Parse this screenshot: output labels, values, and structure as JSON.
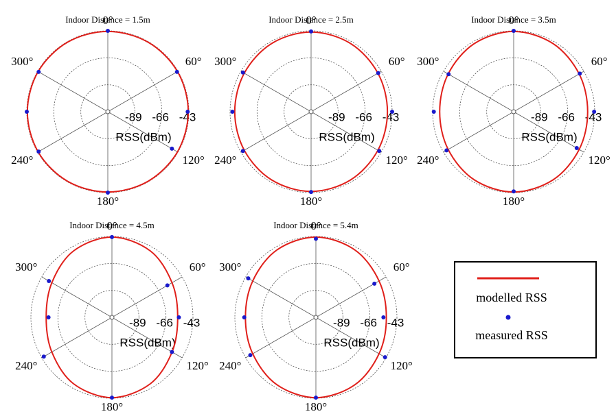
{
  "chart_data": [
    {
      "type": "polar",
      "title": "Indoor Distance = 1.5m",
      "ylabel": "RSS(dBm)",
      "ylim": [
        -112,
        -43
      ],
      "yticks": [
        -89,
        -66,
        -43
      ],
      "xticks": [
        {
          "value": 0,
          "label": "0°"
        },
        {
          "value": 60,
          "label": "60°"
        },
        {
          "value": 120,
          "label": "120°"
        },
        {
          "value": 180,
          "label": "180°"
        },
        {
          "value": 240,
          "label": "240°"
        },
        {
          "value": 300,
          "label": "300°"
        }
      ],
      "series": [
        {
          "name": "modelled RSS",
          "color": "#e0201b",
          "style": "line",
          "x": [
            0,
            30,
            60,
            90,
            120,
            150,
            180,
            210,
            240,
            270,
            300,
            330
          ],
          "values": [
            -43.5,
            -43.5,
            -43.5,
            -43.5,
            -43.5,
            -43.5,
            -43.5,
            -43.5,
            -43.5,
            -43.5,
            -43.5,
            -43.5
          ]
        },
        {
          "name": "measured RSS",
          "color": "#1a1acc",
          "style": "marker",
          "x": [
            0,
            60,
            90,
            120,
            180,
            240,
            270,
            300
          ],
          "values": [
            -43,
            -44,
            -44,
            -49,
            -43,
            -44,
            -43,
            -44
          ]
        }
      ]
    },
    {
      "type": "polar",
      "title": "Indoor Distance = 2.5m",
      "ylabel": "RSS(dBm)",
      "ylim": [
        -112,
        -43
      ],
      "yticks": [
        -89,
        -66,
        -43
      ],
      "xticks": [
        {
          "value": 0,
          "label": "0°"
        },
        {
          "value": 60,
          "label": "60°"
        },
        {
          "value": 120,
          "label": "120°"
        },
        {
          "value": 180,
          "label": "180°"
        },
        {
          "value": 240,
          "label": "240°"
        },
        {
          "value": 300,
          "label": "300°"
        }
      ],
      "series": [
        {
          "color": "#e0201b",
          "style": "line",
          "x": [
            0,
            30,
            60,
            90,
            120,
            150,
            180,
            210,
            240,
            270,
            300,
            330
          ],
          "values": [
            -44,
            -44.8,
            -46.3,
            -47,
            -46.3,
            -44.8,
            -44,
            -44.8,
            -46.3,
            -47,
            -46.3,
            -44.8
          ]
        },
        {
          "color": "#1a1acc",
          "style": "marker",
          "x": [
            0,
            60,
            90,
            120,
            180,
            240,
            270,
            300
          ],
          "values": [
            -43.5,
            -46,
            -43,
            -45,
            -43.5,
            -45,
            -45,
            -45
          ]
        }
      ]
    },
    {
      "type": "polar",
      "title": "Indoor Distance = 3.5m",
      "ylabel": "RSS(dBm)",
      "ylim": [
        -112,
        -43
      ],
      "yticks": [
        -89,
        -66,
        -43
      ],
      "xticks": [
        {
          "value": 0,
          "label": "0°"
        },
        {
          "value": 60,
          "label": "60°"
        },
        {
          "value": 120,
          "label": "120°"
        },
        {
          "value": 180,
          "label": "180°"
        },
        {
          "value": 240,
          "label": "240°"
        },
        {
          "value": 300,
          "label": "300°"
        }
      ],
      "series": [
        {
          "color": "#e0201b",
          "style": "line",
          "x": [
            0,
            30,
            60,
            90,
            120,
            150,
            180,
            210,
            240,
            270,
            300,
            330
          ],
          "values": [
            -43.5,
            -44.9,
            -47.6,
            -49,
            -47.6,
            -44.9,
            -43.5,
            -44.9,
            -47.6,
            -49,
            -47.6,
            -44.9
          ]
        },
        {
          "color": "#1a1acc",
          "style": "marker",
          "x": [
            0,
            60,
            90,
            120,
            180,
            240,
            270,
            300
          ],
          "values": [
            -43,
            -47,
            -43.5,
            -50,
            -44,
            -46,
            -44,
            -48
          ]
        }
      ]
    },
    {
      "type": "polar",
      "title": "Indoor Distance = 4.5m",
      "ylabel": "RSS(dBm)",
      "ylim": [
        -112,
        -43
      ],
      "yticks": [
        -89,
        -66,
        -43
      ],
      "xticks": [
        {
          "value": 0,
          "label": "0°"
        },
        {
          "value": 60,
          "label": "60°"
        },
        {
          "value": 120,
          "label": "120°"
        },
        {
          "value": 180,
          "label": "180°"
        },
        {
          "value": 240,
          "label": "240°"
        },
        {
          "value": 300,
          "label": "300°"
        }
      ],
      "series": [
        {
          "color": "#e0201b",
          "style": "line",
          "x": [
            0,
            30,
            60,
            90,
            120,
            150,
            180,
            210,
            240,
            270,
            300,
            330
          ],
          "values": [
            -43.5,
            -46.6,
            -52.9,
            -56,
            -52.9,
            -46.6,
            -43.5,
            -46.6,
            -52.9,
            -56,
            -52.9,
            -46.6
          ]
        },
        {
          "color": "#1a1acc",
          "style": "marker",
          "x": [
            0,
            60,
            90,
            120,
            180,
            240,
            270,
            300
          ],
          "values": [
            -43.5,
            -57.5,
            -55,
            -53,
            -43.5,
            -45,
            -58,
            -50
          ]
        }
      ]
    },
    {
      "type": "polar",
      "title": "Indoor Distance = 5.4m",
      "ylabel": "RSS(dBm)",
      "ylim": [
        -112,
        -43
      ],
      "yticks": [
        -89,
        -66,
        -43
      ],
      "xticks": [
        {
          "value": 0,
          "label": "0°"
        },
        {
          "value": 60,
          "label": "60°"
        },
        {
          "value": 120,
          "label": "120°"
        },
        {
          "value": 180,
          "label": "180°"
        },
        {
          "value": 240,
          "label": "240°"
        },
        {
          "value": 300,
          "label": "300°"
        }
      ],
      "series": [
        {
          "color": "#e0201b",
          "style": "line",
          "x": [
            0,
            30,
            60,
            90,
            120,
            150,
            180,
            210,
            240,
            270,
            300,
            330
          ],
          "values": [
            -43.5,
            -45.6,
            -49.9,
            -52,
            -49.9,
            -45.6,
            -43.5,
            -45.6,
            -49.9,
            -52,
            -49.9,
            -45.6
          ]
        },
        {
          "color": "#1a1acc",
          "style": "marker",
          "x": [
            0,
            60,
            90,
            120,
            180,
            240,
            270,
            300
          ],
          "values": [
            -45,
            -54.5,
            -54.5,
            -44,
            -43.5,
            -47.5,
            -51,
            -45.5
          ]
        }
      ]
    }
  ]
}
